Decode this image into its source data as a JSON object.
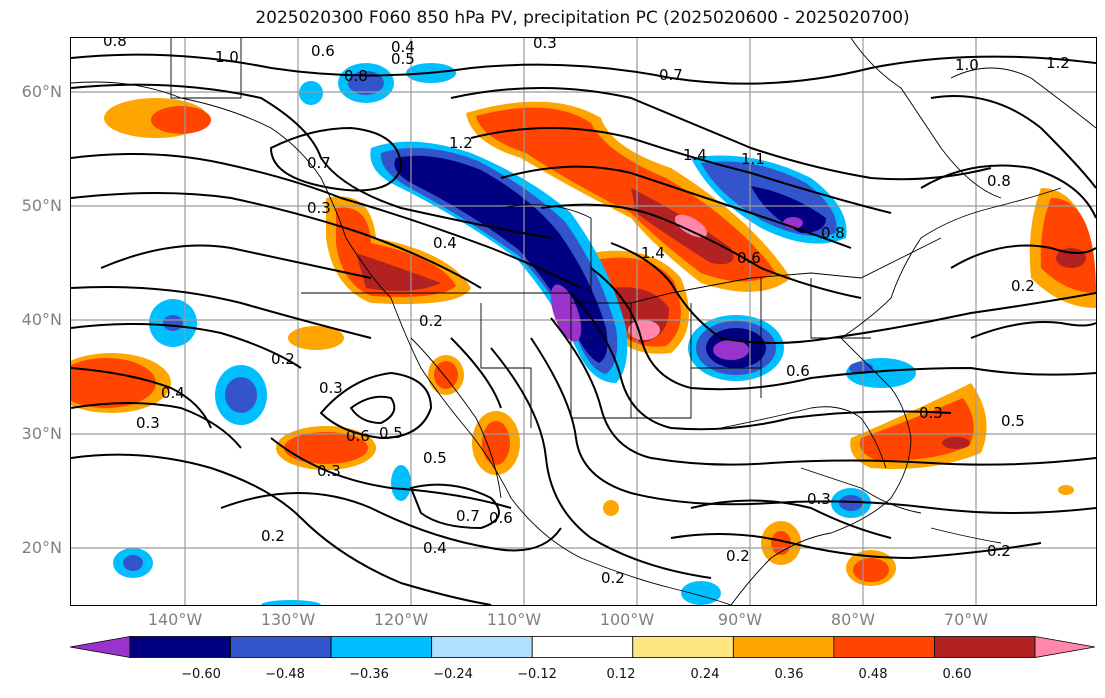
{
  "title": "2025020300 F060 850 hPa PV, precipitation PC (2025020600 - 2025020700)",
  "lat_labels": [
    "60°N",
    "50°N",
    "40°N",
    "30°N",
    "20°N"
  ],
  "lon_labels": [
    "140°W",
    "130°W",
    "120°W",
    "110°W",
    "100°W",
    "90°W",
    "80°W",
    "70°W"
  ],
  "colorbar": {
    "colors": [
      "#9933cc",
      "#000080",
      "#3355cc",
      "#00bfff",
      "#b0e0ff",
      "#ffffff",
      "#ffe680",
      "#ffa500",
      "#ff4500",
      "#b22222",
      "#ff88aa"
    ],
    "labels": [
      "−0.60",
      "−0.48",
      "−0.36",
      "−0.24",
      "−0.12",
      "0.12",
      "0.24",
      "0.36",
      "0.48",
      "0.60"
    ]
  },
  "contour_labels": [
    "0.8",
    "1.0",
    "0.6",
    "0.4",
    "0.5",
    "0.3",
    "0.8",
    "0.7",
    "1.2",
    "1.0",
    "1.2",
    "1.4",
    "1.1",
    "0.8",
    "0.8",
    "0.6",
    "0.4",
    "0.2",
    "0.3",
    "0.7",
    "1.4",
    "0.2",
    "0.3",
    "0.4",
    "0.3",
    "0.6",
    "0.5",
    "0.5",
    "0.3",
    "0.7",
    "0.6",
    "0.4",
    "0.2",
    "0.2",
    "0.6",
    "0.3",
    "0.5",
    "0.3",
    "0.2",
    "0.2",
    "0.2"
  ]
}
